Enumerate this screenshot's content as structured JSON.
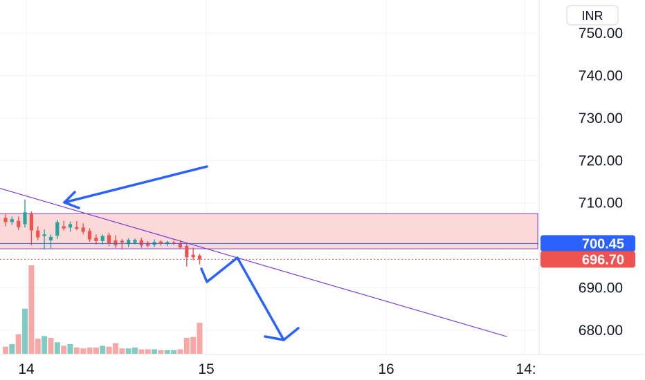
{
  "currency": "INR",
  "colors": {
    "up": "#26a69a",
    "down": "#ef5350",
    "up_volume": "#80cbc4",
    "down_volume": "#f7a8a6",
    "zone_fill": "#fcd9d9",
    "zone_border": "#7b3fd1",
    "trendline": "#7b3fd1",
    "ref_line": "#2962ff",
    "arrow": "#2962ff",
    "grid": "#f0f3fa",
    "price_tag_blue": "#2962ff",
    "price_tag_red": "#ef5350",
    "dotted_line": "#ef5350"
  },
  "chart_data": {
    "type": "candlestick",
    "price_axis": {
      "ticks": [
        "750.00",
        "740.00",
        "730.00",
        "720.00",
        "710.00",
        "690.00",
        "680.00"
      ],
      "range": [
        677,
        755
      ]
    },
    "time_axis": {
      "ticks": [
        "14",
        "15",
        "16",
        "14:"
      ]
    },
    "price_labels": [
      {
        "value": 700.45,
        "text": "700.45",
        "color": "#2962ff"
      },
      {
        "value": 696.7,
        "text": "696.70",
        "color": "#ef5350"
      }
    ],
    "zone": {
      "top": 707.5,
      "bottom": 699.2
    },
    "reference_line": 700.45,
    "dotted_line": 696.7,
    "trendline": {
      "start": [
        -1,
        713.5
      ],
      "end": [
        77.5,
        678.5
      ]
    },
    "candles": [
      {
        "t": 0,
        "o": 706.5,
        "h": 707.5,
        "l": 704.5,
        "c": 705.5
      },
      {
        "t": 1,
        "o": 705.5,
        "h": 706.8,
        "l": 704.8,
        "c": 706.2
      },
      {
        "t": 2,
        "o": 705.8,
        "h": 706.8,
        "l": 703.6,
        "c": 704.3
      },
      {
        "t": 3,
        "o": 705.0,
        "h": 710.8,
        "l": 704.2,
        "c": 707.8
      },
      {
        "t": 4,
        "o": 707.5,
        "h": 708.0,
        "l": 700.0,
        "c": 703.5
      },
      {
        "t": 5,
        "o": 703.5,
        "h": 704.5,
        "l": 701.2,
        "c": 701.9
      },
      {
        "t": 6,
        "o": 702.2,
        "h": 703.8,
        "l": 699.0,
        "c": 702.6
      },
      {
        "t": 7,
        "o": 701.2,
        "h": 702.6,
        "l": 699.2,
        "c": 702.0
      },
      {
        "t": 8,
        "o": 702.3,
        "h": 706.0,
        "l": 701.5,
        "c": 705.5
      },
      {
        "t": 9,
        "o": 704.5,
        "h": 705.8,
        "l": 703.5,
        "c": 704.0
      },
      {
        "t": 10,
        "o": 704.2,
        "h": 705.6,
        "l": 703.2,
        "c": 705.0
      },
      {
        "t": 11,
        "o": 704.3,
        "h": 705.7,
        "l": 703.6,
        "c": 703.9
      },
      {
        "t": 12,
        "o": 704.2,
        "h": 705.2,
        "l": 702.6,
        "c": 703.2
      },
      {
        "t": 13,
        "o": 703.4,
        "h": 704.0,
        "l": 700.8,
        "c": 701.4
      },
      {
        "t": 14,
        "o": 701.8,
        "h": 702.6,
        "l": 700.2,
        "c": 701.0
      },
      {
        "t": 15,
        "o": 701.0,
        "h": 702.6,
        "l": 700.2,
        "c": 702.2
      },
      {
        "t": 16,
        "o": 702.4,
        "h": 703.0,
        "l": 699.8,
        "c": 700.4
      },
      {
        "t": 17,
        "o": 701.2,
        "h": 702.4,
        "l": 699.4,
        "c": 700.0
      },
      {
        "t": 18,
        "o": 701.1,
        "h": 701.5,
        "l": 699.0,
        "c": 700.7
      },
      {
        "t": 19,
        "o": 700.3,
        "h": 701.7,
        "l": 699.6,
        "c": 701.3
      },
      {
        "t": 20,
        "o": 700.6,
        "h": 701.6,
        "l": 700.2,
        "c": 701.3
      },
      {
        "t": 21,
        "o": 701.2,
        "h": 701.8,
        "l": 699.4,
        "c": 700.0
      },
      {
        "t": 22,
        "o": 700.6,
        "h": 701.0,
        "l": 699.6,
        "c": 699.9
      },
      {
        "t": 23,
        "o": 700.1,
        "h": 701.4,
        "l": 699.6,
        "c": 700.8
      },
      {
        "t": 24,
        "o": 700.9,
        "h": 701.2,
        "l": 699.9,
        "c": 700.5
      },
      {
        "t": 25,
        "o": 700.3,
        "h": 701.1,
        "l": 699.8,
        "c": 700.8
      },
      {
        "t": 26,
        "o": 700.7,
        "h": 701.1,
        "l": 700.1,
        "c": 700.4
      },
      {
        "t": 27,
        "o": 700.6,
        "h": 701.2,
        "l": 699.2,
        "c": 699.5
      },
      {
        "t": 28,
        "o": 699.9,
        "h": 700.4,
        "l": 695.0,
        "c": 697.2
      },
      {
        "t": 29,
        "o": 697.8,
        "h": 699.5,
        "l": 696.5,
        "c": 697.2
      },
      {
        "t": 30,
        "o": 697.6,
        "h": 698.0,
        "l": 695.5,
        "c": 696.7
      }
    ],
    "volume": [
      {
        "t": 0,
        "v": 8,
        "dir": "down"
      },
      {
        "t": 1,
        "v": 11,
        "dir": "up"
      },
      {
        "t": 2,
        "v": 22,
        "dir": "down"
      },
      {
        "t": 3,
        "v": 51,
        "dir": "up"
      },
      {
        "t": 4,
        "v": 100,
        "dir": "down"
      },
      {
        "t": 5,
        "v": 17,
        "dir": "down"
      },
      {
        "t": 6,
        "v": 20,
        "dir": "up"
      },
      {
        "t": 7,
        "v": 18,
        "dir": "down"
      },
      {
        "t": 8,
        "v": 13,
        "dir": "up"
      },
      {
        "t": 9,
        "v": 9,
        "dir": "down"
      },
      {
        "t": 10,
        "v": 11,
        "dir": "up"
      },
      {
        "t": 11,
        "v": 7,
        "dir": "down"
      },
      {
        "t": 12,
        "v": 6,
        "dir": "down"
      },
      {
        "t": 13,
        "v": 7,
        "dir": "down"
      },
      {
        "t": 14,
        "v": 7,
        "dir": "down"
      },
      {
        "t": 15,
        "v": 9,
        "dir": "up"
      },
      {
        "t": 16,
        "v": 8,
        "dir": "down"
      },
      {
        "t": 17,
        "v": 12,
        "dir": "down"
      },
      {
        "t": 18,
        "v": 6,
        "dir": "down"
      },
      {
        "t": 19,
        "v": 6,
        "dir": "up"
      },
      {
        "t": 20,
        "v": 7,
        "dir": "up"
      },
      {
        "t": 21,
        "v": 5,
        "dir": "down"
      },
      {
        "t": 22,
        "v": 5,
        "dir": "down"
      },
      {
        "t": 23,
        "v": 5,
        "dir": "up"
      },
      {
        "t": 24,
        "v": 4,
        "dir": "down"
      },
      {
        "t": 25,
        "v": 4,
        "dir": "up"
      },
      {
        "t": 26,
        "v": 4,
        "dir": "up"
      },
      {
        "t": 27,
        "v": 5,
        "dir": "down"
      },
      {
        "t": 28,
        "v": 18,
        "dir": "down"
      },
      {
        "t": 29,
        "v": 19,
        "dir": "down"
      },
      {
        "t": 30,
        "v": 35,
        "dir": "down"
      }
    ]
  }
}
